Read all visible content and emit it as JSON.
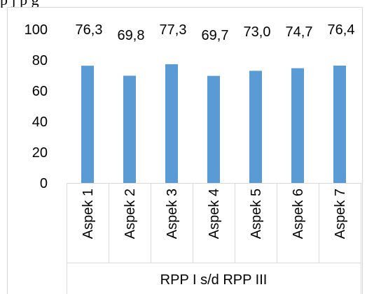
{
  "page": {
    "top_text": "p                       j       p       g"
  },
  "chart_data": {
    "type": "bar",
    "categories": [
      "Aspek 1",
      "Aspek 2",
      "Aspek 3",
      "Aspek 4",
      "Aspek 5",
      "Aspek 6",
      "Aspek 7"
    ],
    "values": [
      76.3,
      69.8,
      77.3,
      69.7,
      73.0,
      74.7,
      76.4
    ],
    "data_labels": [
      "76,3",
      "69,8",
      "77,3",
      "69,7",
      "73,0",
      "74,7",
      "76,4"
    ],
    "title": "",
    "xlabel": "RPP I s/d RPP III",
    "ylabel": "",
    "ylim": [
      0,
      100
    ],
    "yticks": [
      0,
      20,
      40,
      60,
      80,
      100
    ],
    "ytick_labels": [
      "0",
      "20",
      "40",
      "60",
      "80",
      "100"
    ],
    "grid": false,
    "legend": "none",
    "bar_color": "#5b9bd5"
  }
}
